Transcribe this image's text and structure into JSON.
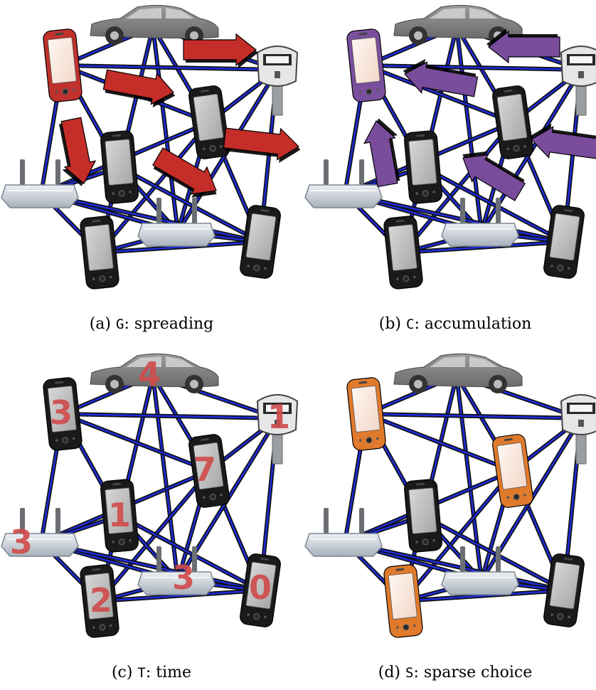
{
  "panels": [
    {
      "id": "a",
      "caption": {
        "prefix": "(a) ",
        "code": "G",
        "rest": ": spreading"
      },
      "phone_color": "default",
      "highlight": "#c0312c",
      "highlight_nodes": [
        "p1"
      ],
      "arrows": {
        "color": "#c42d28",
        "direction": "outward"
      }
    },
    {
      "id": "b",
      "caption": {
        "prefix": "(b) ",
        "code": "C",
        "rest": ": accumulation"
      },
      "phone_color": "default",
      "highlight": "#7a4f9e",
      "highlight_nodes": [
        "p1"
      ],
      "arrows": {
        "color": "#7a4c9c",
        "direction": "inward"
      }
    },
    {
      "id": "c",
      "caption": {
        "prefix": "(c) ",
        "code": "T",
        "rest": ": time"
      },
      "phone_color": "default",
      "highlight_nodes": [],
      "numbers": {
        "car": "4",
        "p1": "3",
        "meter": "1",
        "p2": "7",
        "p3": "1",
        "r1": "3",
        "r2": "3",
        "p4": "2",
        "p5": "0"
      }
    },
    {
      "id": "d",
      "caption": {
        "prefix": "(d) ",
        "code": "S",
        "rest": ": sparse choice"
      },
      "phone_color": "default",
      "highlight": "#e07a2c",
      "highlight_nodes": [
        "p1",
        "p2",
        "p4"
      ]
    }
  ],
  "colors": {
    "edge_outer": "#111111",
    "edge_inner": "#1f2bd8",
    "phone_body": "#1a1a1a",
    "device_gray": "#a9abae",
    "number_red": "#cf4c4c"
  }
}
